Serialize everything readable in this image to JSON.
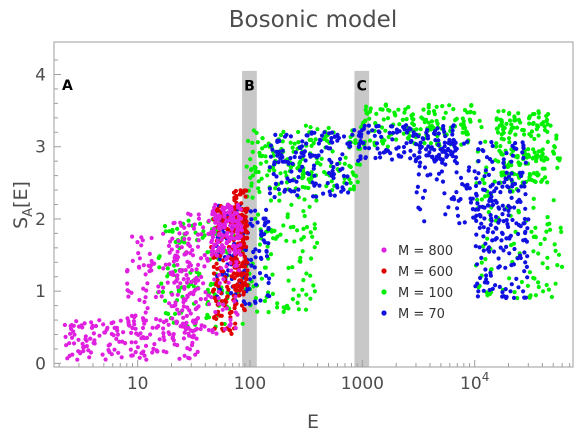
{
  "chart_data": {
    "type": "scatter",
    "title": "Bosonic model",
    "xlabel": "E",
    "ylabel_main": "S",
    "ylabel_sub": "A",
    "ylabel_tail": "[E]",
    "x_scale": "log",
    "xlim": [
      1.8,
      75000
    ],
    "ylim": [
      -0.05,
      4.45
    ],
    "x_ticks": [
      {
        "value": 10,
        "label": "10"
      },
      {
        "value": 100,
        "label": "100"
      },
      {
        "value": 1000,
        "label": "1000"
      },
      {
        "value": 10000,
        "base": "10",
        "exp": "4"
      }
    ],
    "y_ticks": [
      {
        "value": 0,
        "label": "0"
      },
      {
        "value": 1,
        "label": "1"
      },
      {
        "value": 2,
        "label": "2"
      },
      {
        "value": 3,
        "label": "3"
      },
      {
        "value": 4,
        "label": "4"
      }
    ],
    "regions": [
      {
        "label": "B",
        "x_range": [
          85,
          115
        ]
      },
      {
        "label": "C",
        "x_range": [
          850,
          1150
        ]
      }
    ],
    "corner_label": {
      "text": "A",
      "color": "#e020e0"
    },
    "legend_position": "right-middle",
    "series": [
      {
        "name": "M = 800",
        "color": "#e020e0",
        "order": 3,
        "bands": [
          [
            2.2,
            35,
            0.05,
            0.6
          ],
          [
            8,
            35,
            0.3,
            1.8
          ],
          [
            20,
            80,
            0.4,
            2.1
          ],
          [
            45,
            85,
            1.5,
            2.2
          ]
        ]
      },
      {
        "name": "M = 600",
        "color": "#e00000",
        "order": 2,
        "bands": [
          [
            45,
            90,
            0.4,
            2.2
          ],
          [
            70,
            95,
            1.0,
            2.4
          ]
        ]
      },
      {
        "name": "M = 100",
        "color": "#00f000",
        "order": 0,
        "bands": [
          [
            15,
            90,
            0.5,
            2.0
          ],
          [
            90,
            400,
            0.7,
            3.1
          ],
          [
            100,
            1000,
            2.4,
            3.3
          ],
          [
            1000,
            10000,
            3.0,
            3.6
          ],
          [
            10000,
            60000,
            0.9,
            3.5
          ],
          [
            15000,
            45000,
            2.5,
            3.5
          ]
        ]
      },
      {
        "name": "M = 70",
        "color": "#1010e0",
        "order": 1,
        "bands": [
          [
            50,
            150,
            0.8,
            2.2
          ],
          [
            150,
            800,
            2.3,
            3.2
          ],
          [
            800,
            7000,
            2.8,
            3.3
          ],
          [
            3000,
            30000,
            1.8,
            3.1
          ],
          [
            10000,
            30000,
            0.9,
            2.6
          ]
        ]
      }
    ]
  }
}
